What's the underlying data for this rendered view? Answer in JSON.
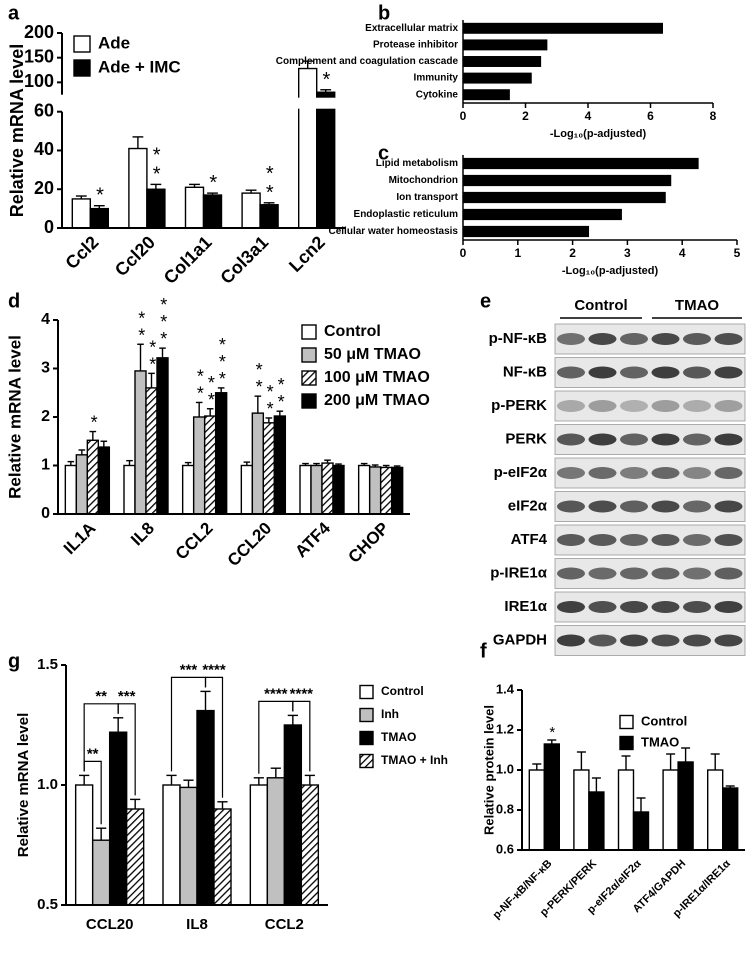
{
  "chart_data": [
    {
      "type": "bar",
      "label": "a",
      "y_label": "Relative mRNA level",
      "categories": [
        "Ccl2",
        "Ccl20",
        "Col1a1",
        "Col3a1",
        "Lcn2"
      ],
      "series": [
        {
          "name": "Ade",
          "color": "#ffffff",
          "values": [
            15,
            41,
            21,
            18,
            128
          ],
          "errors": [
            1.5,
            6,
            1.5,
            1.5,
            15
          ]
        },
        {
          "name": "Ade + IMC",
          "color": "#000000",
          "values": [
            10,
            20,
            17,
            12,
            80
          ],
          "errors": [
            1.5,
            2.5,
            1,
            1,
            5
          ],
          "sig": [
            "*",
            "**",
            "*",
            "**",
            "*"
          ]
        }
      ],
      "ylim": [
        0,
        200
      ],
      "y_break": [
        60,
        75
      ],
      "yticks": [
        0,
        20,
        40,
        60,
        100,
        150,
        200
      ],
      "legend": "upper left"
    },
    {
      "type": "barh",
      "label": "b",
      "color": "#000000",
      "categories": [
        "Extracellular matrix",
        "Protease inhibitor",
        "Complement and coagulation cascade",
        "Immunity",
        "Cytokine"
      ],
      "values": [
        6.4,
        2.7,
        2.5,
        2.2,
        1.5
      ],
      "x_label": "-Log₁₀(p-adjusted)",
      "xlim": [
        0,
        8
      ],
      "xticks": [
        0,
        2,
        4,
        6,
        8
      ]
    },
    {
      "type": "barh",
      "label": "c",
      "color": "#000000",
      "categories": [
        "Lipid metabolism",
        "Mitochondrion",
        "Ion transport",
        "Endoplastic reticulum",
        "Cellular water homeostasis"
      ],
      "values": [
        4.3,
        3.8,
        3.7,
        2.9,
        2.3
      ],
      "x_label": "-Log₁₀(p-adjusted)",
      "xlim": [
        0,
        5
      ],
      "xticks": [
        0,
        1,
        2,
        3,
        4,
        5
      ]
    },
    {
      "type": "bar",
      "label": "d",
      "y_label": "Relative mRNA level",
      "categories": [
        "IL1A",
        "IL8",
        "CCL2",
        "CCL20",
        "ATF4",
        "CHOP"
      ],
      "series": [
        {
          "name": "Control",
          "color": "#ffffff",
          "values": [
            1,
            1,
            1,
            1,
            1,
            1
          ],
          "errors": [
            0.08,
            0.1,
            0.06,
            0.07,
            0.04,
            0.04
          ]
        },
        {
          "name": "50 μM TMAO",
          "color": "#c0c0c0",
          "values": [
            1.22,
            2.95,
            2.0,
            2.08,
            1.0,
            0.97
          ],
          "errors": [
            0.1,
            0.55,
            0.3,
            0.35,
            0.04,
            0.04
          ],
          "sig": [
            null,
            "**",
            "**",
            "**",
            null,
            null
          ]
        },
        {
          "name": "100 μM TMAO",
          "color": "#ffffff",
          "hatch": true,
          "values": [
            1.52,
            2.6,
            2.02,
            1.88,
            1.05,
            0.96
          ],
          "errors": [
            0.18,
            0.3,
            0.15,
            0.1,
            0.06,
            0.04
          ],
          "sig": [
            "*",
            "**",
            "**",
            "**",
            null,
            null
          ]
        },
        {
          "name": "200 μM TMAO",
          "color": "#000000",
          "values": [
            1.38,
            3.22,
            2.5,
            2.02,
            1.0,
            0.96
          ],
          "errors": [
            0.12,
            0.2,
            0.1,
            0.1,
            0.03,
            0.03
          ],
          "sig": [
            null,
            "***",
            "***",
            "**",
            null,
            null
          ]
        }
      ],
      "ylim": [
        0,
        4
      ],
      "yticks": [
        0,
        1,
        2,
        3,
        4
      ],
      "legend": "upper right"
    },
    {
      "type": "bar",
      "label": "f",
      "y_label": "Relative protein level",
      "categories": [
        "p-NF-κB/NF-κB",
        "p-PERK/PERK",
        "p-eIF2α/eIF2α",
        "ATF4/GAPDH",
        "p-IRE1α/IRE1α"
      ],
      "series": [
        {
          "name": "Control",
          "color": "#ffffff",
          "values": [
            1,
            1,
            1,
            1,
            1
          ],
          "errors": [
            0.03,
            0.09,
            0.07,
            0.08,
            0.08
          ]
        },
        {
          "name": "TMAO",
          "color": "#000000",
          "values": [
            1.13,
            0.89,
            0.79,
            1.04,
            0.91
          ],
          "errors": [
            0.02,
            0.07,
            0.07,
            0.07,
            0.01
          ],
          "sig": [
            "*",
            null,
            null,
            null,
            null
          ]
        }
      ],
      "ylim": [
        0.6,
        1.4
      ],
      "yticks": [
        0.6,
        0.8,
        {
          "value": 1.0,
          "label": "1.0"
        },
        1.2,
        1.4
      ],
      "legend": "upper right"
    },
    {
      "type": "bar",
      "label": "g",
      "y_label": "Relative mRNA level",
      "categories": [
        "CCL20",
        "IL8",
        "CCL2"
      ],
      "series": [
        {
          "name": "Control",
          "color": "#ffffff",
          "values": [
            1,
            1,
            1
          ],
          "errors": [
            0.04,
            0.04,
            0.03
          ]
        },
        {
          "name": "Inh",
          "color": "#c0c0c0",
          "values": [
            0.77,
            0.99,
            1.03
          ],
          "errors": [
            0.05,
            0.03,
            0.04
          ]
        },
        {
          "name": "TMAO",
          "color": "#000000",
          "values": [
            1.22,
            1.31,
            1.25
          ],
          "errors": [
            0.06,
            0.08,
            0.04
          ]
        },
        {
          "name": "TMAO + Inh",
          "color": "#ffffff",
          "hatch": true,
          "values": [
            0.9,
            0.9,
            1.0
          ],
          "errors": [
            0.04,
            0.03,
            0.04
          ]
        }
      ],
      "comparisons": [
        {
          "category": "CCL20",
          "between": [
            "Control",
            "Inh"
          ],
          "label": "**"
        },
        {
          "category": "CCL20",
          "between": [
            "Control",
            "TMAO"
          ],
          "label": "**"
        },
        {
          "category": "CCL20",
          "between": [
            "TMAO",
            "TMAO + Inh"
          ],
          "label": "***"
        },
        {
          "category": "IL8",
          "between": [
            "Control",
            "TMAO"
          ],
          "label": "***"
        },
        {
          "category": "IL8",
          "between": [
            "TMAO",
            "TMAO + Inh"
          ],
          "label": "****"
        },
        {
          "category": "CCL2",
          "between": [
            "Control",
            "TMAO"
          ],
          "label": "****"
        },
        {
          "category": "CCL2",
          "between": [
            "TMAO",
            "TMAO + Inh"
          ],
          "label": "****"
        }
      ],
      "ylim": [
        0.5,
        1.5
      ],
      "yticks": [
        0.5,
        {
          "value": 1.0,
          "label": "1.0"
        },
        1.5
      ],
      "legend": "upper right"
    }
  ],
  "blot": {
    "label": "e",
    "groups": [
      "Control",
      "TMAO"
    ],
    "rows": [
      "p-NF-κB",
      "NF-κB",
      "p-PERK",
      "PERK",
      "p-eIF2α",
      "eIF2α",
      "ATF4",
      "p-IRE1α",
      "IRE1α",
      "GAPDH"
    ]
  }
}
